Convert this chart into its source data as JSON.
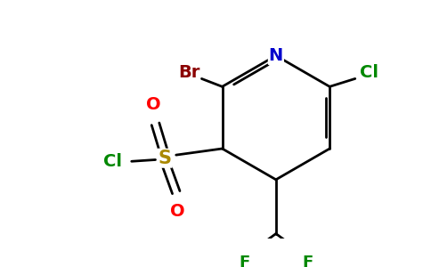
{
  "background_color": "#ffffff",
  "atom_colors": {
    "Br": "#8b0000",
    "N": "#0000cc",
    "Cl": "#008800",
    "O": "#ff0000",
    "S": "#aa8800",
    "F": "#008800",
    "C": "#000000"
  },
  "bond_color": "#000000",
  "bond_lw": 2.0,
  "figsize": [
    4.84,
    3.0
  ],
  "dpi": 100
}
